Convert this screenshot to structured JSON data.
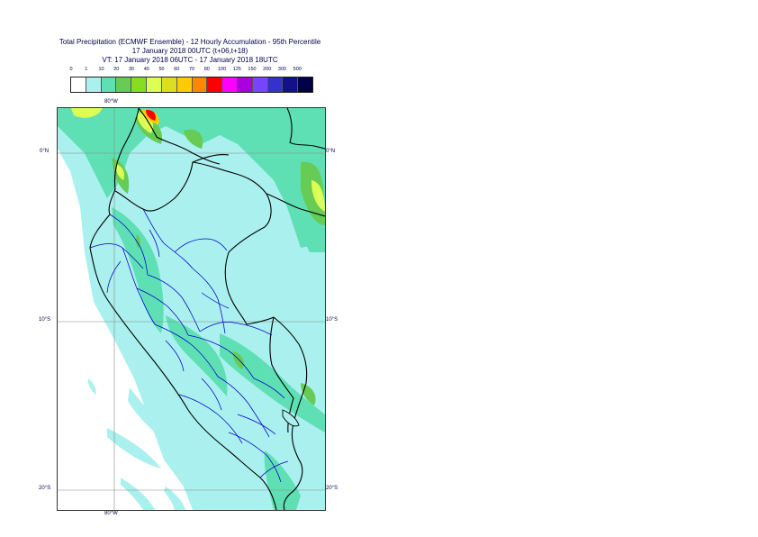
{
  "title": {
    "line1": "Total Precipitation (ECMWF Ensemble) - 12 Hourly Accumulation - 95th Percentile",
    "line2": "17 January 2018 00UTC (t+06,t+18)",
    "line3": "VT: 17 January 2018 06UTC - 17 January 2018 18UTC"
  },
  "legend": {
    "thresholds": [
      "0",
      "1",
      "10",
      "20",
      "30",
      "40",
      "50",
      "60",
      "70",
      "80",
      "100",
      "125",
      "150",
      "200",
      "300",
      "500"
    ],
    "colors": [
      "#ffffff",
      "#aaf0ee",
      "#5fe0b4",
      "#66cc55",
      "#88dd22",
      "#ddff55",
      "#dddd22",
      "#ffcc00",
      "#ff8800",
      "#ff0000",
      "#ff00ff",
      "#aa00dd",
      "#7744ff",
      "#3333cc",
      "#111188",
      "#000044"
    ]
  },
  "map": {
    "lon_top": "80°W",
    "lon_bottom": "80°W",
    "lat_0_left": "0°N",
    "lat_0_right": "0°N",
    "lat_10_left": "10°S",
    "lat_10_right": "10°S",
    "lat_20_left": "20°S",
    "lat_20_right": "20°S"
  },
  "colors": {
    "ocean": "#ffffff",
    "light_precip": "#aaf0ee",
    "mid_precip": "#5fe0b4",
    "green_precip": "#66cc55",
    "country_border": "#000000",
    "admin_border": "#0000cc",
    "grid": "#888888"
  }
}
